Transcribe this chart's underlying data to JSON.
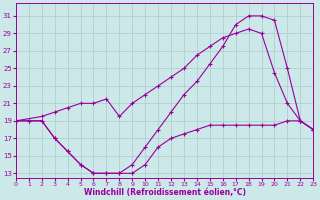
{
  "xlabel": "Windchill (Refroidissement éolien,°C)",
  "bg_color": "#cce8e8",
  "grid_color": "#aacccc",
  "line_color": "#990099",
  "x_ticks": [
    0,
    1,
    2,
    3,
    4,
    5,
    6,
    7,
    8,
    9,
    10,
    11,
    12,
    13,
    14,
    15,
    16,
    17,
    18,
    19,
    20,
    21,
    22,
    23
  ],
  "y_ticks": [
    13,
    15,
    17,
    19,
    21,
    23,
    25,
    27,
    29,
    31
  ],
  "xlim": [
    0,
    23
  ],
  "ylim": [
    12.5,
    32.5
  ],
  "line1_x": [
    0,
    1,
    2,
    3,
    4,
    5,
    6,
    7,
    8,
    9,
    10,
    11,
    12,
    13,
    14,
    15,
    16,
    17,
    18,
    19,
    20,
    21,
    22,
    23
  ],
  "line1_y": [
    19,
    19,
    19,
    17,
    15.5,
    14,
    13,
    13,
    13,
    13,
    14,
    16,
    17,
    17.5,
    18,
    18.5,
    18.5,
    18.5,
    18.5,
    18.5,
    18.5,
    19,
    19,
    18
  ],
  "line2_x": [
    0,
    2,
    3,
    4,
    5,
    6,
    7,
    8,
    9,
    10,
    11,
    12,
    13,
    14,
    15,
    16,
    17,
    18,
    19,
    20,
    21,
    22,
    23
  ],
  "line2_y": [
    19,
    19.5,
    20,
    20.5,
    21,
    21,
    21.5,
    19.5,
    21,
    22,
    23,
    24,
    25,
    26.5,
    27.5,
    28.5,
    29,
    29.5,
    29,
    24.5,
    21,
    19,
    18
  ],
  "line3_x": [
    0,
    1,
    2,
    3,
    4,
    5,
    6,
    7,
    8,
    9,
    10,
    11,
    12,
    13,
    14,
    15,
    16,
    17,
    18,
    19,
    20,
    21,
    22,
    23
  ],
  "line3_y": [
    19,
    19,
    19,
    17,
    15.5,
    14,
    13,
    13,
    13,
    14,
    16,
    18,
    20,
    22,
    23.5,
    25.5,
    27.5,
    30,
    31,
    31,
    30.5,
    25,
    19,
    18
  ]
}
